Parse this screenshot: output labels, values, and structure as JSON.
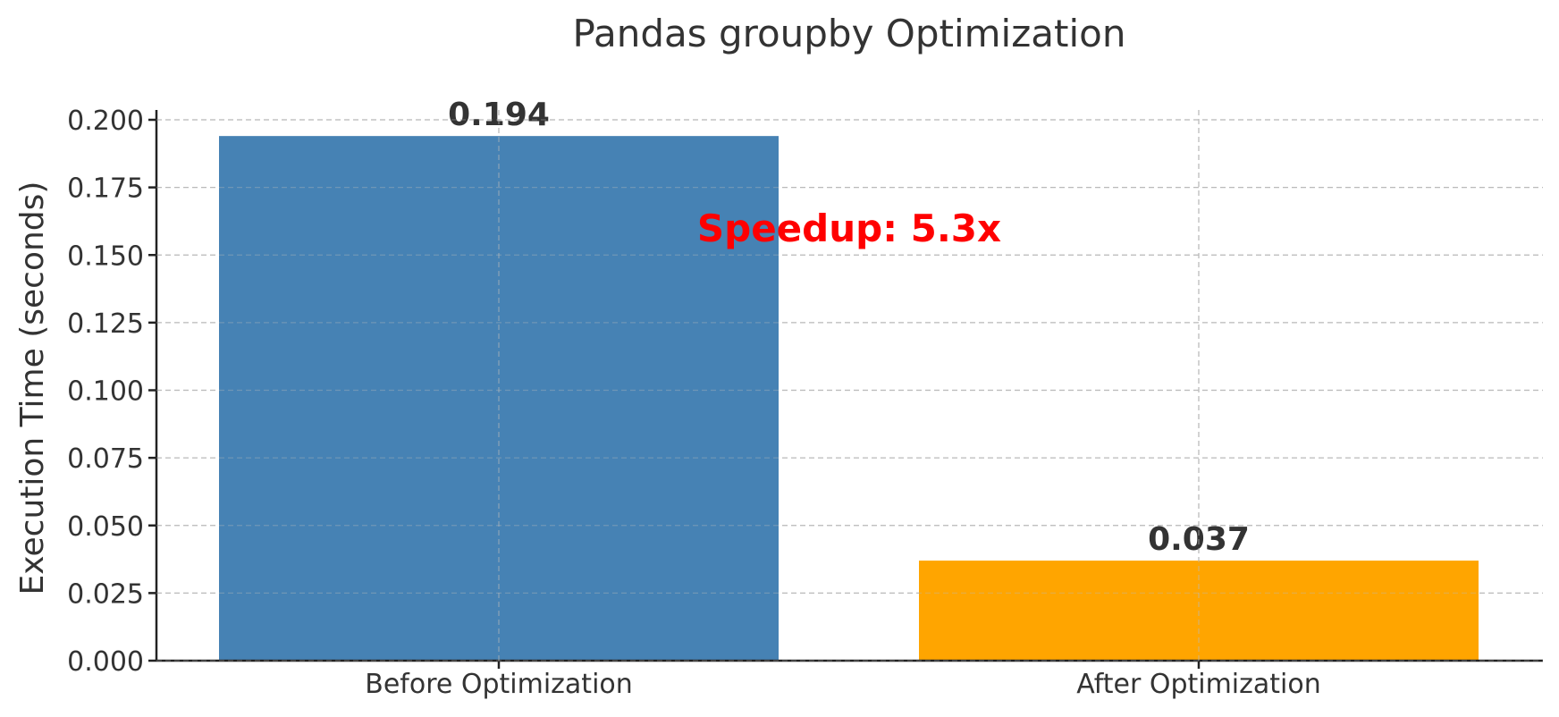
{
  "chart_data": {
    "type": "bar",
    "title": "Pandas groupby Optimization",
    "xlabel": "",
    "ylabel": "Execution Time (seconds)",
    "categories": [
      "Before Optimization",
      "After Optimization"
    ],
    "values": [
      0.194,
      0.037
    ],
    "value_labels": [
      "0.194",
      "0.037"
    ],
    "bar_colors": [
      "#4682b4",
      "#ffa500"
    ],
    "ylim": [
      0,
      0.2
    ],
    "yticks": [
      0.0,
      0.025,
      0.05,
      0.075,
      0.1,
      0.125,
      0.15,
      0.175,
      0.2
    ],
    "ytick_labels": [
      "0.000",
      "0.025",
      "0.050",
      "0.075",
      "0.100",
      "0.125",
      "0.150",
      "0.175",
      "0.200"
    ],
    "grid": true,
    "annotation": {
      "text": "Speedup: 5.3x",
      "color": "#ff0000",
      "y": 0.16
    }
  }
}
